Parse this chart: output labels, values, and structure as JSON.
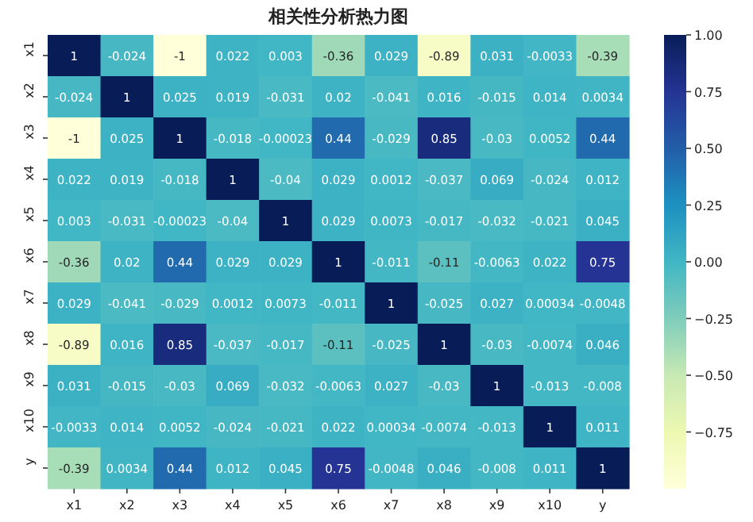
{
  "chart_data": {
    "type": "heatmap",
    "title": "相关性分析热力图",
    "categories": [
      "x1",
      "x2",
      "x3",
      "x4",
      "x5",
      "x6",
      "x7",
      "x8",
      "x9",
      "x10",
      "y"
    ],
    "y_categories": [
      "x1",
      "x2",
      "x3",
      "x4",
      "x5",
      "x6",
      "x7",
      "x8",
      "x9",
      "x10",
      "y"
    ],
    "cells": [
      [
        1,
        -0.024,
        -1,
        0.022,
        0.003,
        -0.36,
        0.029,
        -0.89,
        0.031,
        -0.0033,
        -0.39
      ],
      [
        -0.024,
        1,
        0.025,
        0.019,
        -0.031,
        0.02,
        -0.041,
        0.016,
        -0.015,
        0.014,
        0.0034
      ],
      [
        -1,
        0.025,
        1,
        -0.018,
        -0.00023,
        0.44,
        -0.029,
        0.85,
        -0.03,
        0.0052,
        0.44
      ],
      [
        0.022,
        0.019,
        -0.018,
        1,
        -0.04,
        0.029,
        0.0012,
        -0.037,
        0.069,
        -0.024,
        0.012
      ],
      [
        0.003,
        -0.031,
        -0.00023,
        -0.04,
        1,
        0.029,
        0.0073,
        -0.017,
        -0.032,
        -0.021,
        0.045
      ],
      [
        -0.36,
        0.02,
        0.44,
        0.029,
        0.029,
        1,
        -0.011,
        -0.11,
        -0.0063,
        0.022,
        0.75
      ],
      [
        0.029,
        -0.041,
        -0.029,
        0.0012,
        0.0073,
        -0.011,
        1,
        -0.025,
        0.027,
        0.00034,
        -0.0048
      ],
      [
        -0.89,
        0.016,
        0.85,
        -0.037,
        -0.017,
        -0.11,
        -0.025,
        1,
        -0.03,
        -0.0074,
        0.046
      ],
      [
        0.031,
        -0.015,
        -0.03,
        0.069,
        -0.032,
        -0.0063,
        0.027,
        -0.03,
        1,
        -0.013,
        -0.008
      ],
      [
        -0.0033,
        0.014,
        0.0052,
        -0.024,
        -0.021,
        0.022,
        0.00034,
        -0.0074,
        -0.013,
        1,
        0.011
      ],
      [
        -0.39,
        0.0034,
        0.44,
        0.012,
        0.045,
        0.75,
        -0.0048,
        0.046,
        -0.008,
        0.011,
        1
      ]
    ],
    "data_labels": true,
    "clim": [
      -1,
      1
    ],
    "cticks": [
      {
        "value": 1,
        "label": "1.00"
      },
      {
        "value": 0.75,
        "label": "0.75"
      },
      {
        "value": 0.5,
        "label": "0.50"
      },
      {
        "value": 0.25,
        "label": "0.25"
      },
      {
        "value": 0,
        "label": "0.00"
      },
      {
        "value": -0.25,
        "label": "−0.25"
      },
      {
        "value": -0.5,
        "label": "−0.50"
      },
      {
        "value": -0.75,
        "label": "−0.75"
      }
    ]
  }
}
